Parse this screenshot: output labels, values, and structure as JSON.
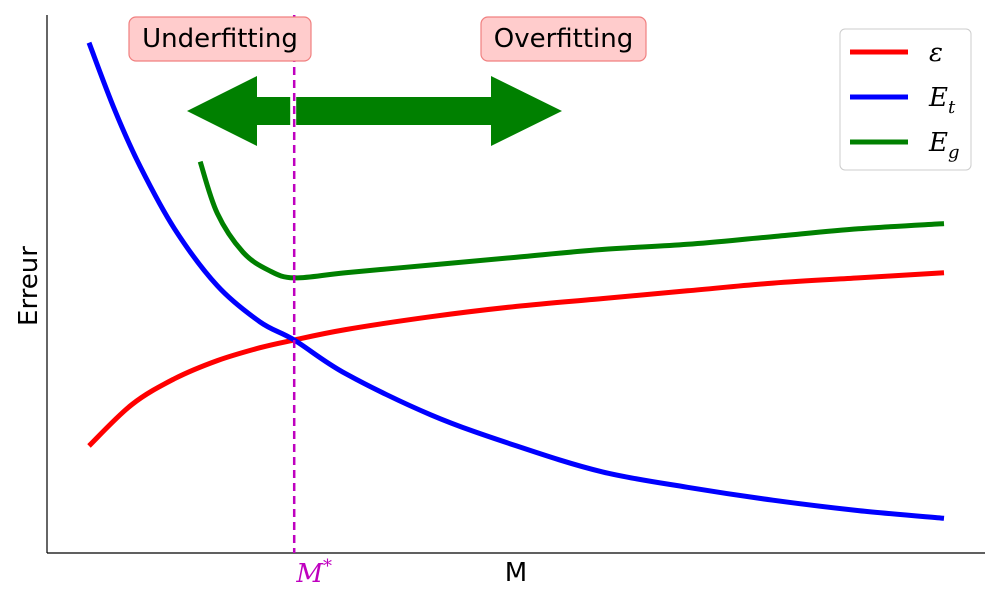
{
  "chart_data": {
    "type": "line",
    "title": "",
    "xlabel": "M",
    "ylabel": "Erreur",
    "xlim": [
      0,
      1
    ],
    "ylim": [
      0,
      1
    ],
    "grid": false,
    "legend_position": "top-right",
    "optimal_point": {
      "label": "M*",
      "x": 0.24,
      "color": "#bf00bf"
    },
    "regions": [
      {
        "label": "Underfitting",
        "direction": "left"
      },
      {
        "label": "Overfitting",
        "direction": "right"
      }
    ],
    "arrow_color": "#008000",
    "series": [
      {
        "name": "ε",
        "color": "#ff0000",
        "x": [
          0.0,
          0.05,
          0.1,
          0.15,
          0.2,
          0.24,
          0.3,
          0.4,
          0.5,
          0.6,
          0.7,
          0.8,
          0.9,
          1.0
        ],
        "y": [
          0.18,
          0.26,
          0.31,
          0.345,
          0.37,
          0.385,
          0.405,
          0.43,
          0.45,
          0.465,
          0.48,
          0.495,
          0.505,
          0.515
        ]
      },
      {
        "name": "E_t",
        "color": "#0000ff",
        "x": [
          0.0,
          0.03,
          0.06,
          0.1,
          0.15,
          0.2,
          0.24,
          0.3,
          0.4,
          0.5,
          0.6,
          0.7,
          0.8,
          0.9,
          1.0
        ],
        "y": [
          0.96,
          0.83,
          0.72,
          0.6,
          0.49,
          0.42,
          0.385,
          0.32,
          0.24,
          0.18,
          0.13,
          0.1,
          0.075,
          0.055,
          0.04
        ]
      },
      {
        "name": "E_g",
        "color": "#008000",
        "x": [
          0.13,
          0.15,
          0.18,
          0.21,
          0.24,
          0.3,
          0.4,
          0.5,
          0.6,
          0.7,
          0.8,
          0.9,
          1.0
        ],
        "y": [
          0.73,
          0.63,
          0.555,
          0.52,
          0.505,
          0.515,
          0.53,
          0.545,
          0.56,
          0.57,
          0.585,
          0.6,
          0.61
        ]
      }
    ]
  }
}
